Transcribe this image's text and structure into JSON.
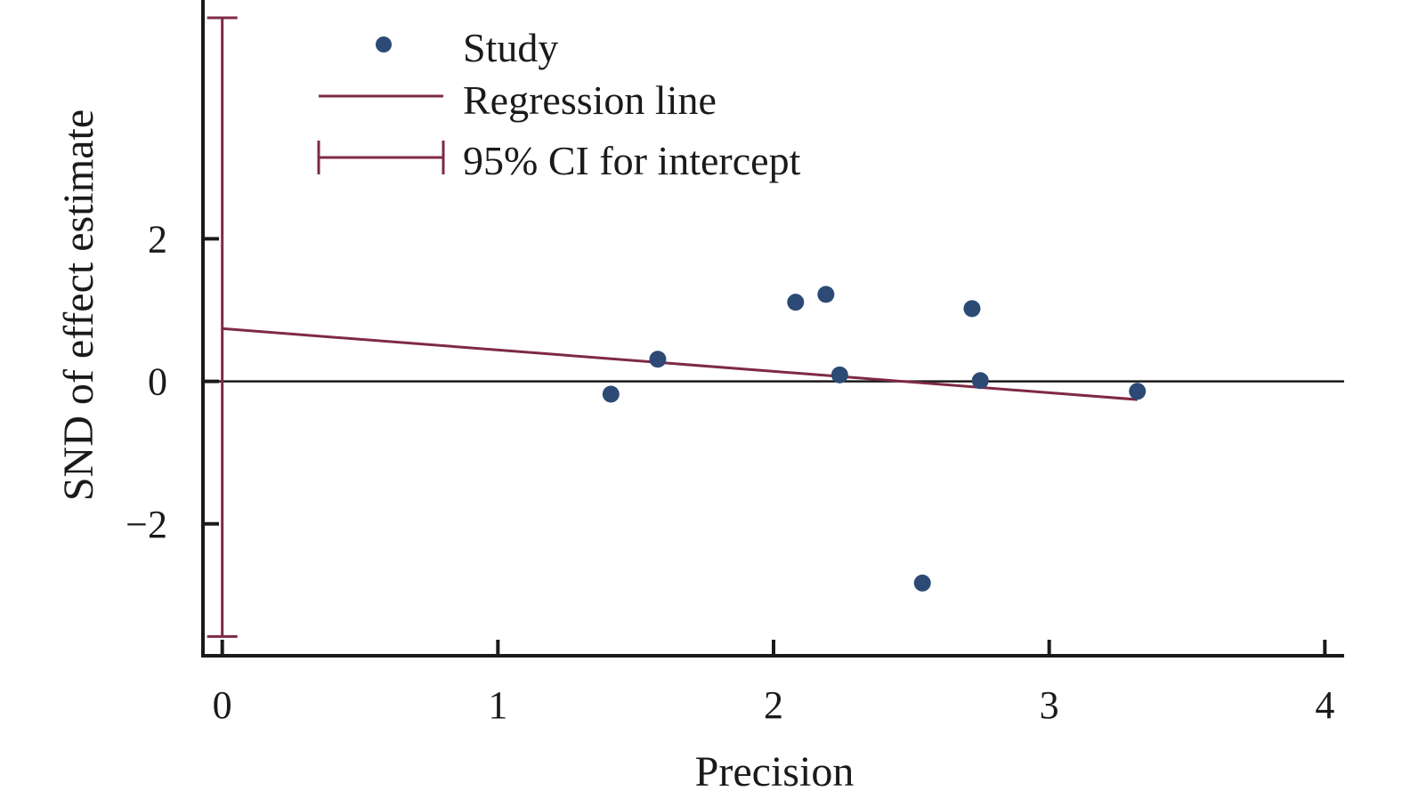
{
  "chart_data": {
    "type": "scatter",
    "title": "",
    "xlabel": "Precision",
    "ylabel": "SND of effect estimate",
    "xlim": [
      -0.07,
      4.07
    ],
    "ylim": [
      -3.85,
      5.35
    ],
    "x_ticks": [
      0,
      1,
      2,
      3,
      4
    ],
    "x_tick_labels": [
      "0",
      "1",
      "2",
      "3",
      "4"
    ],
    "y_ticks": [
      2,
      0,
      -2
    ],
    "y_tick_labels": [
      "2",
      "0",
      "−2"
    ],
    "grid": false,
    "legend_position": "top-left",
    "legend": {
      "study": "Study",
      "regression": "Regression line",
      "ci": "95% CI for intercept"
    },
    "studies": {
      "name": "Study",
      "points": [
        {
          "x": 1.41,
          "y": -0.18
        },
        {
          "x": 1.58,
          "y": 0.31
        },
        {
          "x": 2.08,
          "y": 1.11
        },
        {
          "x": 2.19,
          "y": 1.22
        },
        {
          "x": 2.24,
          "y": 0.09
        },
        {
          "x": 2.54,
          "y": -2.83
        },
        {
          "x": 2.72,
          "y": 1.02
        },
        {
          "x": 2.75,
          "y": 0.01
        },
        {
          "x": 3.32,
          "y": -0.14
        }
      ]
    },
    "regression_line": {
      "name": "Regression line",
      "intercept": 0.74,
      "slope": -0.3,
      "x_range": [
        0,
        3.32
      ]
    },
    "intercept_ci": {
      "name": "95% CI for intercept",
      "x": 0,
      "lower": -3.58,
      "upper": 5.1
    },
    "zero_line": 0,
    "colors": {
      "points": "#2c4a75",
      "regression": "#7e2a44",
      "axis": "#1a1a1a"
    }
  }
}
